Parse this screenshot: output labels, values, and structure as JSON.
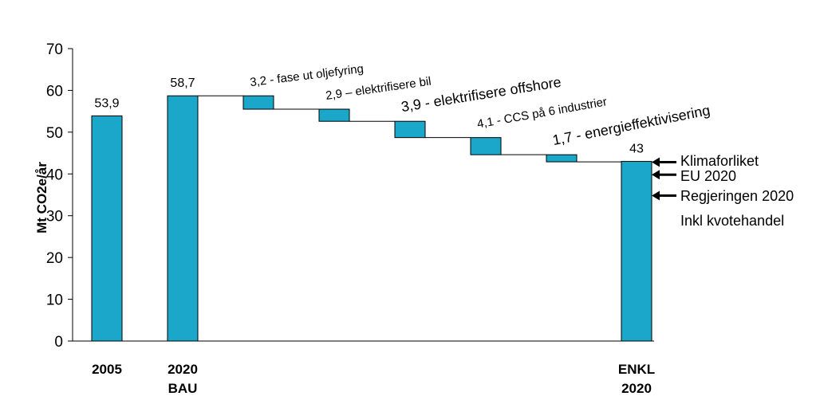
{
  "chart_data": {
    "type": "bar",
    "subtype": "waterfall",
    "ylabel": "Mt CO2e/år",
    "ylim": [
      0,
      70
    ],
    "yticks": [
      0,
      10,
      20,
      30,
      40,
      50,
      60,
      70
    ],
    "grid": false,
    "bar_color": "#1aa7c9",
    "bars": [
      {
        "category": [
          "2005"
        ],
        "kind": "total",
        "value": 53.9,
        "label": "53,9"
      },
      {
        "category": [
          "2020",
          "BAU"
        ],
        "kind": "total",
        "value": 58.7,
        "label": "58,7"
      },
      {
        "category": [],
        "kind": "step",
        "start": 58.7,
        "end": 55.5,
        "label": "3,2 - fase ut oljefyring"
      },
      {
        "category": [],
        "kind": "step",
        "start": 55.5,
        "end": 52.6,
        "label": "2,9 – elektrifisere bil"
      },
      {
        "category": [],
        "kind": "step",
        "start": 52.6,
        "end": 48.7,
        "label": "3,9 - elektrifisere offshore"
      },
      {
        "category": [],
        "kind": "step",
        "start": 48.7,
        "end": 44.6,
        "label": "4,1 - CCS på 6 industrier"
      },
      {
        "category": [],
        "kind": "step",
        "start": 44.6,
        "end": 42.9,
        "label": "1,7 - energieffektivisering"
      },
      {
        "category": [
          "ENKL",
          "2020"
        ],
        "kind": "total",
        "value": 43,
        "label": "43"
      }
    ],
    "annotations": [
      {
        "text": "Klimaforliket",
        "value": 43,
        "arrow": true
      },
      {
        "text": "EU 2020",
        "value": 40,
        "arrow": true
      },
      {
        "text": "Regjeringen 2020",
        "value": 35,
        "arrow": true
      },
      {
        "text": "Inkl kvotehandel",
        "value": null,
        "arrow": false
      }
    ]
  }
}
